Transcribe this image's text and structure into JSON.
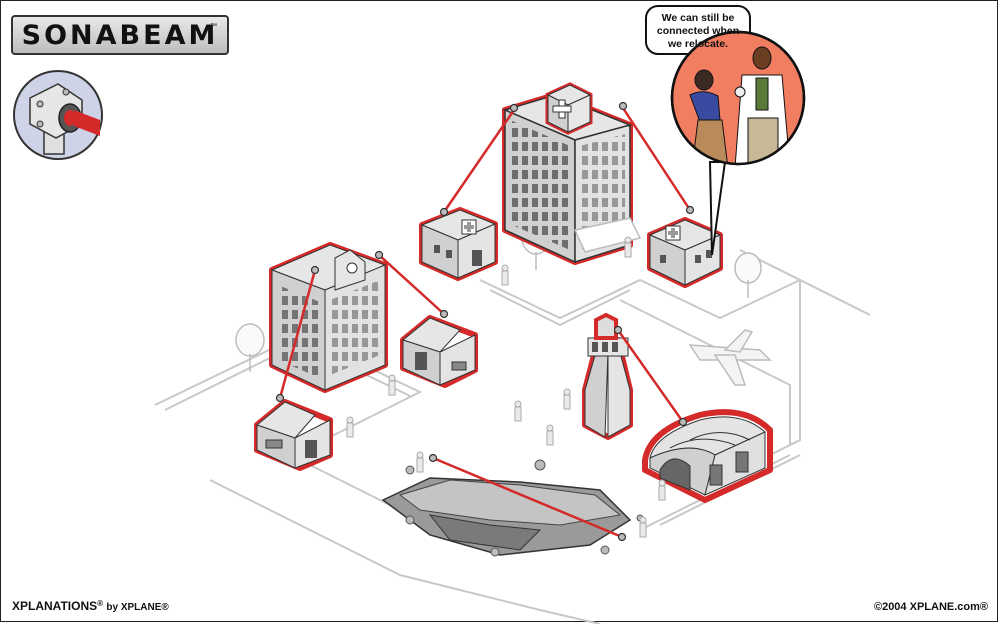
{
  "brand": {
    "logo": "SONABEAM",
    "trademark": "™"
  },
  "speech_bubble": {
    "line1": "We can still be",
    "line2": "connected when",
    "line3": "we relocate."
  },
  "footer": {
    "left_brand": "XPLANATIONS",
    "left_trademark": "®",
    "left_by": "by XPLANE®",
    "right": "©2004 XPLANE.com®"
  },
  "colors": {
    "link_red": "#d42a2a",
    "building_fill": "#d0d0d0",
    "building_light": "#e8e8e8",
    "ground_line": "#cccccc",
    "bubble_bg": "#f27e62"
  },
  "icons": [
    "sonabeam-device-icon",
    "hospital-cross-icon",
    "airplane-icon"
  ]
}
